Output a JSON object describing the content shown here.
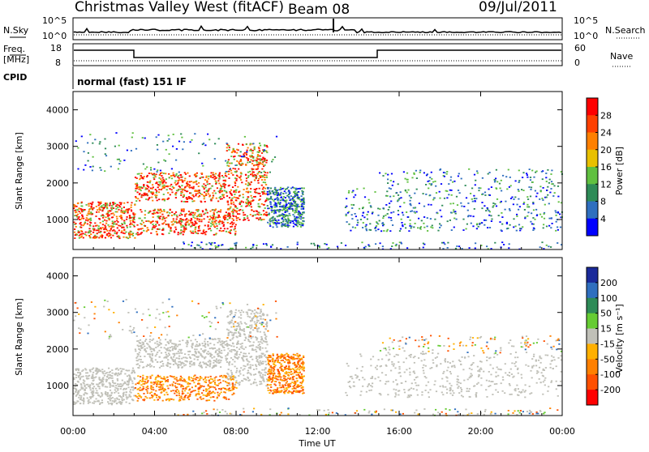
{
  "header": {
    "station": "Christmas Valley West (fitACF)",
    "beam": "Beam 08",
    "date": "09/Jul/2011",
    "cpid_label": "CPID",
    "cpid_text": "normal (fast) 151 IF"
  },
  "top_strips": {
    "nsky": {
      "label": "N.Sky",
      "ticks": [
        "10^5",
        "10^0"
      ]
    },
    "nsearch": {
      "label": "N.Search",
      "ticks": [
        "10^5",
        "10^0"
      ]
    },
    "freq": {
      "label_line1": "Freq.",
      "label_line2": "[MHz]",
      "ticks": [
        "18",
        "8"
      ]
    },
    "nave": {
      "label": "Nave",
      "ticks": [
        "60",
        "0"
      ]
    }
  },
  "chart_data": [
    {
      "type": "heatmap",
      "panel": "power",
      "ylabel": "Slant Range [km]",
      "yticks": [
        1000,
        2000,
        3000,
        4000
      ],
      "ylim": [
        180,
        4500
      ],
      "xticks": [
        "00:00",
        "04:00",
        "08:00",
        "12:00",
        "16:00",
        "20:00",
        "00:00"
      ],
      "xlim_hours": [
        0,
        24
      ],
      "colorbar": {
        "label": "Power [dB]",
        "ticks": [
          "28",
          "24",
          "20",
          "16",
          "12",
          "8",
          "4"
        ],
        "colors": [
          "#ff0000",
          "#ff4000",
          "#ff8000",
          "#e8c000",
          "#60c040",
          "#2e8b57",
          "#2f6fbf",
          "#0000ff"
        ]
      }
    },
    {
      "type": "heatmap",
      "panel": "velocity",
      "ylabel": "Slant Range [km]",
      "yticks": [
        1000,
        2000,
        3000,
        4000
      ],
      "ylim": [
        180,
        4500
      ],
      "xticks": [
        "00:00",
        "04:00",
        "08:00",
        "12:00",
        "16:00",
        "20:00",
        "00:00"
      ],
      "xlim_hours": [
        0,
        24
      ],
      "xlabel": "Time UT",
      "colorbar": {
        "label": "Velocity [m s⁻¹]",
        "ticks": [
          "200",
          "100",
          "50",
          "15",
          "-15",
          "-50",
          "-100",
          "-200"
        ],
        "colors": [
          "#1a2a9a",
          "#2f6fbf",
          "#2e8b57",
          "#66cc33",
          "#c0c0b8",
          "#ffb000",
          "#ff8000",
          "#ff5000",
          "#ff0000"
        ]
      }
    }
  ]
}
